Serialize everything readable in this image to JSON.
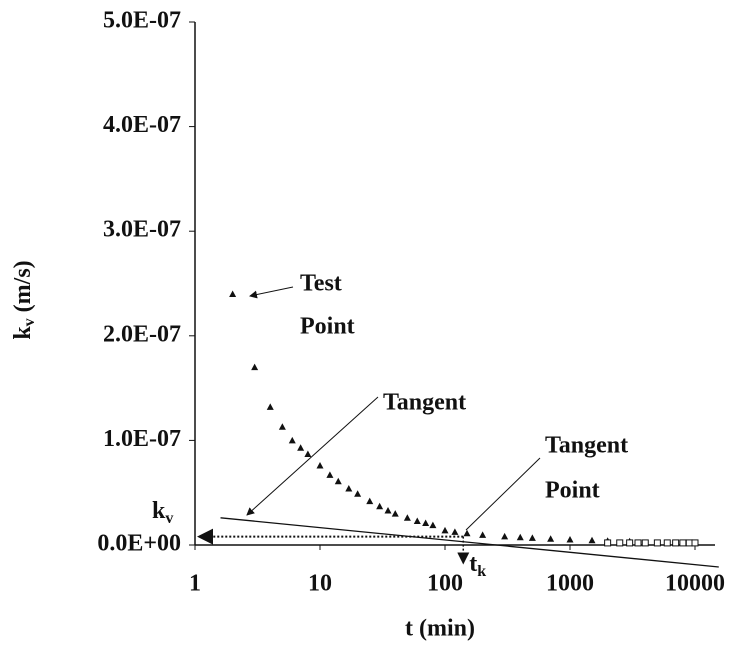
{
  "chart_data": {
    "type": "scatter",
    "x_label": "t (min)",
    "y_label": {
      "base": "k",
      "sub": "v",
      "rest": " (m/s)"
    },
    "log_x": true,
    "xlim": [
      1,
      10000
    ],
    "xticks": [
      1,
      10,
      100,
      1000,
      10000
    ],
    "ylim": [
      0,
      5e-07
    ],
    "yticks": [
      {
        "value": 0,
        "label": "0.0E+00"
      },
      {
        "value": 1e-07,
        "label": "1.0E-07"
      },
      {
        "value": 2e-07,
        "label": "2.0E-07"
      },
      {
        "value": 3e-07,
        "label": "3.0E-07"
      },
      {
        "value": 4e-07,
        "label": "4.0E-07"
      },
      {
        "value": 5e-07,
        "label": "5.0E-07"
      }
    ],
    "series": [
      {
        "marker": "triangle",
        "color": "#111111",
        "x": [
          2,
          3,
          4,
          5,
          6,
          7,
          8,
          10,
          12,
          14,
          17,
          20,
          25,
          30,
          35,
          40,
          50,
          60,
          70,
          80,
          100,
          120,
          150,
          200,
          300,
          400,
          500,
          700,
          1000,
          1500,
          2000,
          3000
        ],
        "values": [
          2.4e-07,
          1.7e-07,
          1.32e-07,
          1.13e-07,
          1e-07,
          9.3e-08,
          8.7e-08,
          7.6e-08,
          6.7e-08,
          6.1e-08,
          5.4e-08,
          4.9e-08,
          4.2e-08,
          3.7e-08,
          3.3e-08,
          3e-08,
          2.6e-08,
          2.3e-08,
          2.1e-08,
          1.9e-08,
          1.4e-08,
          1.25e-08,
          1.12e-08,
          9.7e-09,
          8.3e-09,
          7.4e-09,
          6.8e-09,
          6e-09,
          5.2e-09,
          4.5e-09,
          4.1e-09,
          3.6e-09
        ]
      },
      {
        "marker": "square",
        "color": "#111111",
        "x": [
          2000,
          2500,
          3000,
          3500,
          4000,
          5000,
          6000,
          7000,
          8000,
          9000,
          10000
        ],
        "values": [
          2e-09,
          2e-09,
          2e-09,
          2e-09,
          2e-09,
          2e-09,
          2e-09,
          2e-09,
          2e-09,
          2e-09,
          2e-09
        ]
      }
    ],
    "tangent_line": {
      "x": [
        1.6,
        15500
      ],
      "y": [
        2.6e-08,
        -2.1e-08
      ]
    },
    "kv_level": 8e-09,
    "tk": 140,
    "kv_label": {
      "base": "k",
      "sub": "v"
    },
    "tk_label": {
      "base": "t",
      "sub": "k"
    },
    "annotations": {
      "test_point": [
        "Test",
        "Point"
      ],
      "tangent": [
        "Tangent"
      ],
      "tangent_point": [
        "Tangent",
        "Point"
      ]
    }
  }
}
